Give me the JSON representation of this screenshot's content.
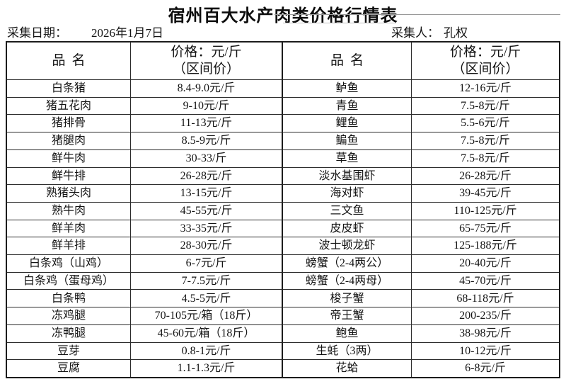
{
  "page": {
    "title": "宿州百大水产肉类价格行情表"
  },
  "meta": {
    "date_label": "采集日期：",
    "date_value": "2026年1月7日",
    "collector_label": "采集人：",
    "collector_value": "孔权"
  },
  "table": {
    "headers": {
      "name_left": "品名",
      "price_left_line1": "价格：元/斤",
      "price_left_line2": "（区间价）",
      "name_right": "品名",
      "price_right_line1": "价格：元/斤",
      "price_right_line2": "（区间价）"
    },
    "rows": [
      {
        "left_name": "白条猪",
        "left_price": "8.4-9.0元/斤",
        "right_name": "鲈鱼",
        "right_price": "12-16元/斤"
      },
      {
        "left_name": "猪五花肉",
        "left_price": "9-10元/斤",
        "right_name": "青鱼",
        "right_price": "7.5-8元/斤"
      },
      {
        "left_name": "猪排骨",
        "left_price": "11-13元/斤",
        "right_name": "鲤鱼",
        "right_price": "5.5-6元/斤"
      },
      {
        "left_name": "猪腿肉",
        "left_price": "8.5-9元/斤",
        "right_name": "鳊鱼",
        "right_price": "7.5-8元/斤"
      },
      {
        "left_name": "鲜牛肉",
        "left_price": "30-33/斤",
        "right_name": "草鱼",
        "right_price": "7.5-8元/斤"
      },
      {
        "left_name": "鲜牛排",
        "left_price": "26-28元/斤",
        "right_name": "淡水基围虾",
        "right_price": "26-28元/斤"
      },
      {
        "left_name": "熟猪头肉",
        "left_price": "13-15元/斤",
        "right_name": "海对虾",
        "right_price": "39-45元/斤"
      },
      {
        "left_name": "熟牛肉",
        "left_price": "45-55元/斤",
        "right_name": "三文鱼",
        "right_price": "110-125元/斤"
      },
      {
        "left_name": "鲜羊肉",
        "left_price": "33-35元/斤",
        "right_name": "皮皮虾",
        "right_price": "65-75元/斤"
      },
      {
        "left_name": "鲜羊排",
        "left_price": "28-30元/斤",
        "right_name": "波士顿龙虾",
        "right_price": "125-188元/斤"
      },
      {
        "left_name": "白条鸡（山鸡）",
        "left_price": "6-7元/斤",
        "right_name": "螃蟹（2-4两公）",
        "right_price": "20-40元/斤"
      },
      {
        "left_name": "白条鸡（蛋母鸡）",
        "left_price": "7-7.5元/斤",
        "right_name": "螃蟹（2-4两母）",
        "right_price": "45-70元/斤"
      },
      {
        "left_name": "白条鸭",
        "left_price": "4.5-5元/斤",
        "right_name": "梭子蟹",
        "right_price": "68-118元/斤"
      },
      {
        "left_name": "冻鸡腿",
        "left_price": "70-105元/箱（18斤）",
        "right_name": "帝王蟹",
        "right_price": "200-235/斤"
      },
      {
        "left_name": "冻鸭腿",
        "left_price": "45-60元/箱（18斤）",
        "right_name": "鲍鱼",
        "right_price": "38-98元/斤"
      },
      {
        "left_name": "豆芽",
        "left_price": "0.8-1元/斤",
        "right_name": "生蚝（3两）",
        "right_price": "10-12元/斤"
      },
      {
        "left_name": "豆腐",
        "left_price": "1.1-1.3元/斤",
        "right_name": "花蛤",
        "right_price": "6-8元/斤"
      }
    ]
  },
  "colors": {
    "background": "#ffffff",
    "text": "#141414",
    "border": "#1c1c1c",
    "faint_gridline": "#9a9a9a"
  }
}
